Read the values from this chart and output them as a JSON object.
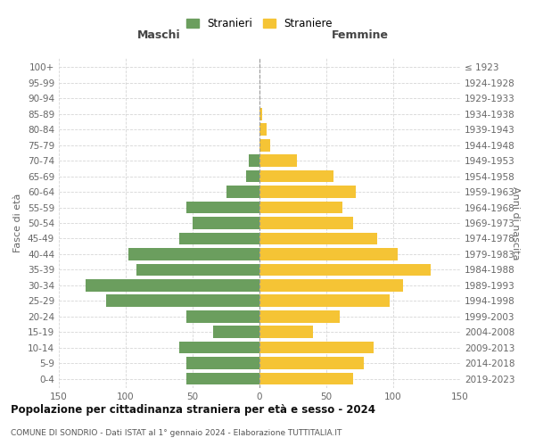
{
  "age_groups": [
    "0-4",
    "5-9",
    "10-14",
    "15-19",
    "20-24",
    "25-29",
    "30-34",
    "35-39",
    "40-44",
    "45-49",
    "50-54",
    "55-59",
    "60-64",
    "65-69",
    "70-74",
    "75-79",
    "80-84",
    "85-89",
    "90-94",
    "95-99",
    "100+"
  ],
  "birth_years": [
    "2019-2023",
    "2014-2018",
    "2009-2013",
    "2004-2008",
    "1999-2003",
    "1994-1998",
    "1989-1993",
    "1984-1988",
    "1979-1983",
    "1974-1978",
    "1969-1973",
    "1964-1968",
    "1959-1963",
    "1954-1958",
    "1949-1953",
    "1944-1948",
    "1939-1943",
    "1934-1938",
    "1929-1933",
    "1924-1928",
    "≤ 1923"
  ],
  "maschi": [
    55,
    55,
    60,
    35,
    55,
    115,
    130,
    92,
    98,
    60,
    50,
    55,
    25,
    10,
    8,
    0,
    0,
    0,
    0,
    0,
    0
  ],
  "femmine": [
    70,
    78,
    85,
    40,
    60,
    97,
    107,
    128,
    103,
    88,
    70,
    62,
    72,
    55,
    28,
    8,
    5,
    2,
    0,
    0,
    0
  ],
  "color_maschi": "#6b9e5e",
  "color_femmine": "#f5c435",
  "title": "Popolazione per cittadinanza straniera per età e sesso - 2024",
  "subtitle": "COMUNE DI SONDRIO - Dati ISTAT al 1° gennaio 2024 - Elaborazione TUTTITALIA.IT",
  "header_left": "Maschi",
  "header_right": "Femmine",
  "ylabel_left": "Fasce di età",
  "ylabel_right": "Anni di nascita",
  "legend_maschi": "Stranieri",
  "legend_femmine": "Straniere",
  "xlim": 150,
  "background_color": "#ffffff",
  "grid_color": "#cccccc"
}
